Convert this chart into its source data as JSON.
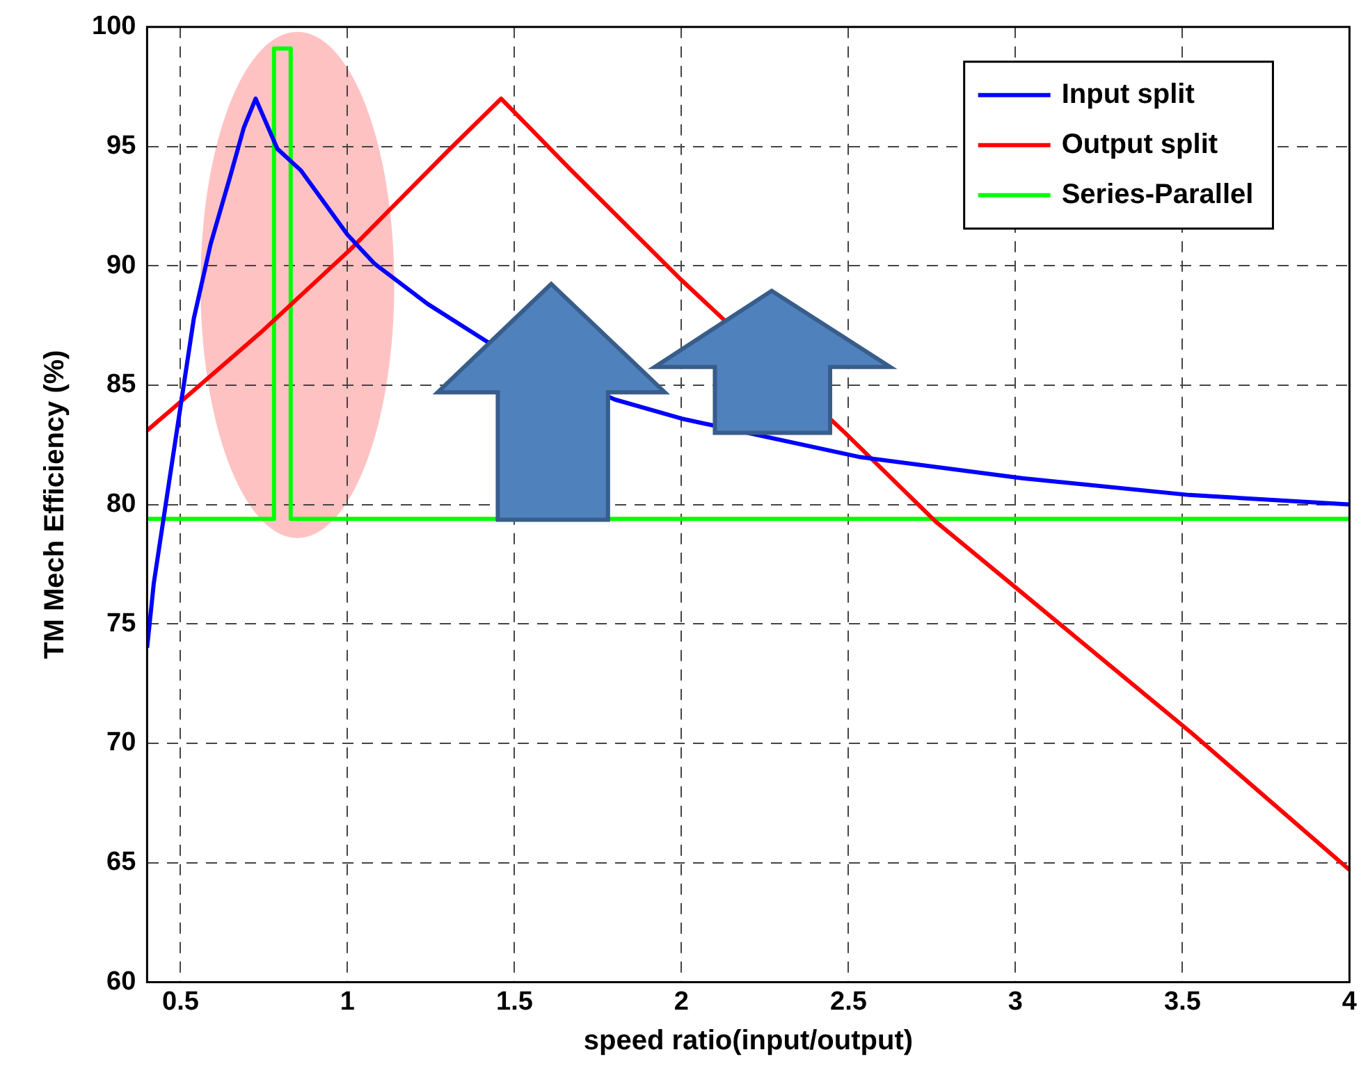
{
  "chart_data": {
    "type": "line",
    "xlabel": "speed ratio(input/output)",
    "ylabel": "TM Mech Efficiency (%)",
    "xlim": [
      0.4,
      4
    ],
    "xticks": [
      0.5,
      1,
      1.5,
      2,
      2.5,
      3,
      3.5,
      4
    ],
    "ylim": [
      60,
      100
    ],
    "yticks": [
      60,
      65,
      70,
      75,
      80,
      85,
      90,
      95,
      100
    ],
    "grid": true,
    "legend": "top right",
    "line_style": "solid",
    "marker": "none",
    "series": [
      {
        "name": "Input split",
        "color": "#0000ff",
        "x": [
          0.4,
          0.42,
          0.54,
          0.59,
          0.65,
          0.69,
          0.725,
          0.79,
          0.86,
          1.0,
          1.08,
          1.24,
          1.42,
          1.8,
          2.0,
          2.53,
          3.02,
          3.52,
          4.0
        ],
        "values": [
          74,
          76.7,
          87.8,
          90.9,
          93.8,
          95.8,
          97,
          94.9,
          94,
          91.3,
          90.1,
          88.4,
          86.8,
          84.4,
          83.6,
          82,
          81.1,
          80.4,
          80
        ]
      },
      {
        "name": "Output split",
        "color": "#ff0000",
        "x": [
          0.4,
          0.5,
          0.74,
          1.01,
          1.3,
          1.46,
          1.67,
          2.0,
          2.49,
          2.76,
          3.02,
          3.53,
          4.0
        ],
        "values": [
          83.1,
          84.3,
          87.2,
          90.7,
          94.8,
          97,
          94,
          89.4,
          83,
          79.3,
          76.3,
          70.4,
          64.7
        ]
      },
      {
        "name": "Series-Parallel",
        "color": "#00ff00",
        "x": [
          0.4,
          0.78,
          0.78,
          0.83,
          0.83,
          4.0
        ],
        "values": [
          79.4,
          79.4,
          99.1,
          99.1,
          79.4,
          79.4
        ]
      }
    ]
  }
}
